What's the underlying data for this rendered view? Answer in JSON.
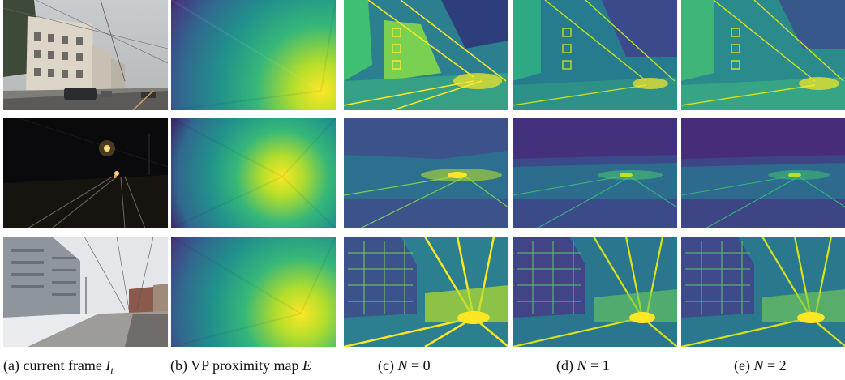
{
  "figure": {
    "captions": [
      {
        "prefix": "(a) current frame",
        "math": "I",
        "sub": "t",
        "rest": ""
      },
      {
        "prefix": "(b) VP proximity map",
        "math": "E",
        "sub": "",
        "rest": ""
      },
      {
        "prefix": "(c)",
        "math": "N",
        "sub": "",
        "rest": "= 0"
      },
      {
        "prefix": "(d)",
        "math": "N",
        "sub": "",
        "rest": "= 1"
      },
      {
        "prefix": "(e)",
        "math": "N",
        "sub": "",
        "rest": "= 2"
      }
    ],
    "rows": [
      {
        "scene": "foggy-day-street-with-buildings-and-car"
      },
      {
        "scene": "night-street-with-tram-tracks"
      },
      {
        "scene": "snowy-street-with-modern-building"
      }
    ],
    "colors": {
      "viridis_dark": "#440154",
      "viridis_mid": "#21918c",
      "viridis_bright": "#fde725"
    }
  }
}
